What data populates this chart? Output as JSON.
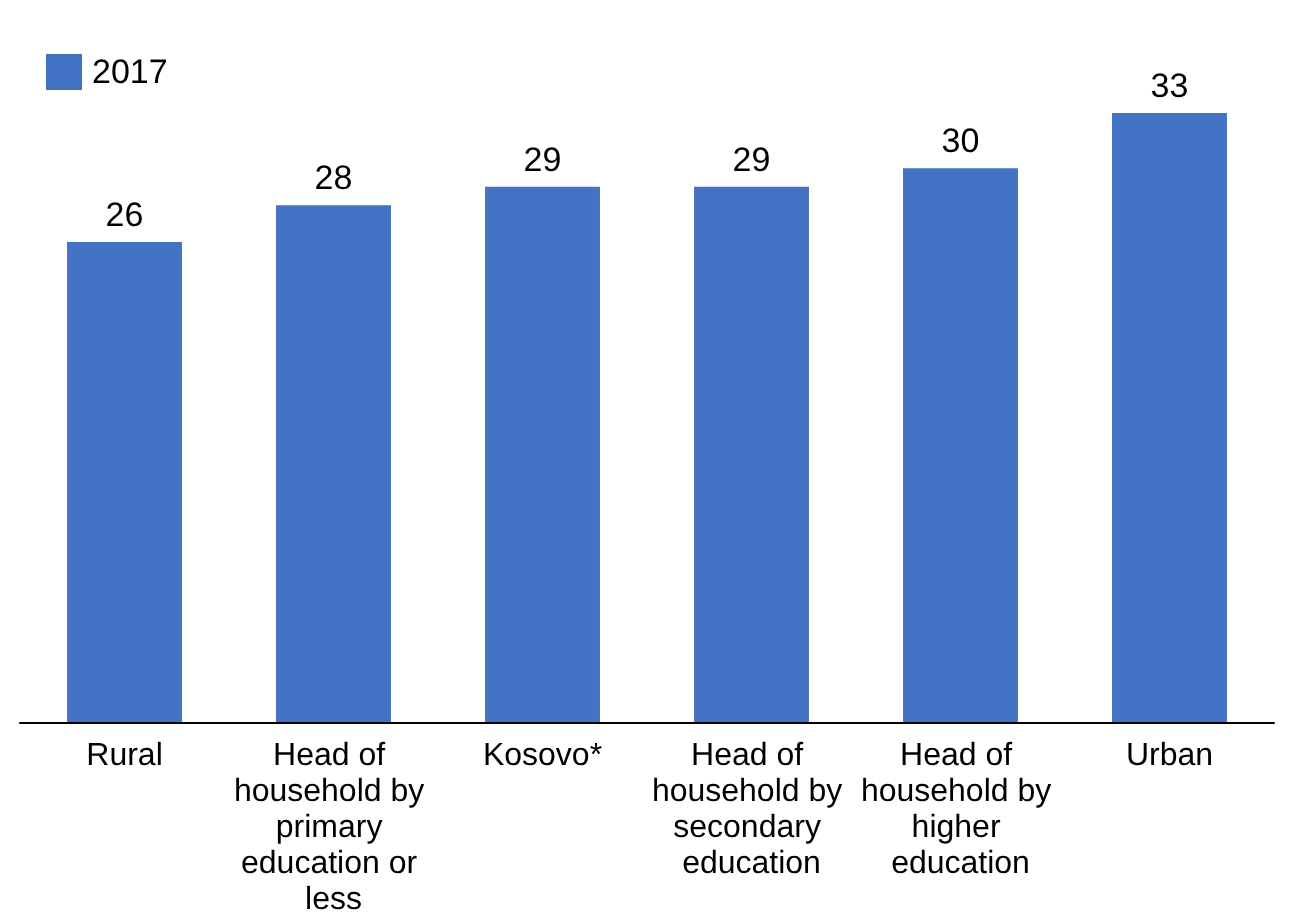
{
  "chart_data": {
    "type": "bar",
    "categories": [
      "Rural",
      "Head of household by primary education or less",
      "Kosovo*",
      "Head of household by secondary education",
      "Head of household by higher education",
      "Urban"
    ],
    "series": [
      {
        "name": "2017",
        "color": "#4472c4",
        "values": [
          26,
          28,
          29,
          29,
          30,
          33
        ]
      }
    ],
    "data_labels": true,
    "legend": "top left",
    "grid": false
  }
}
